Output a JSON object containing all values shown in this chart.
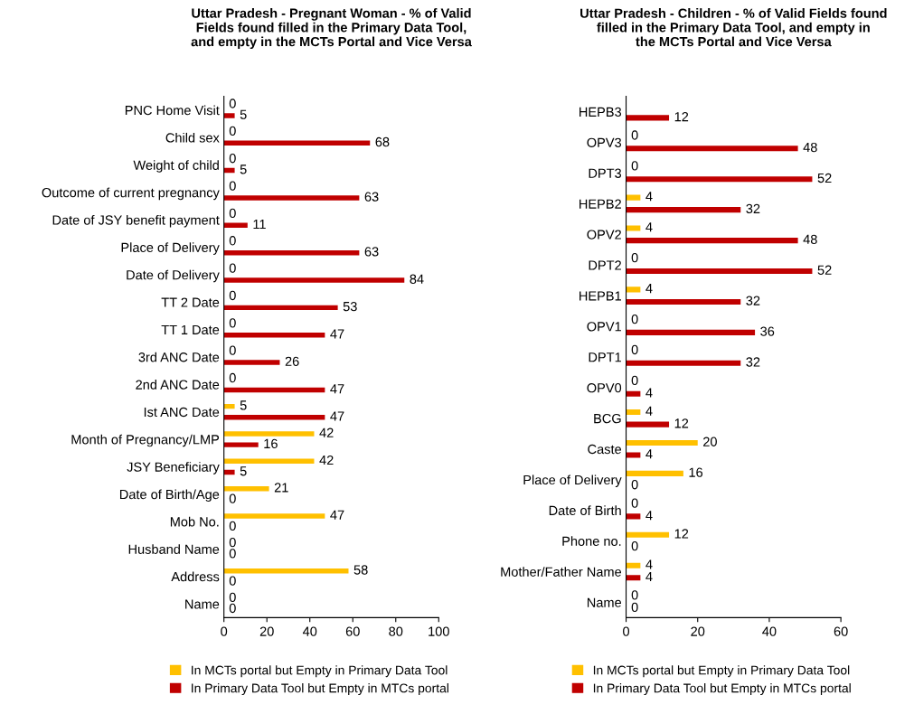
{
  "chart_data": [
    {
      "type": "bar",
      "orientation": "horizontal",
      "title": "Uttar Pradesh - Pregnant Woman - % of Valid\nFields found filled in the Primary Data Tool,\nand empty in the MCTs Portal and Vice Versa",
      "categories": [
        "PNC Home Visit",
        "Child sex",
        "Weight of child",
        "Outcome of current pregnancy",
        "Date of JSY benefit payment",
        "Place of Delivery",
        "Date of Delivery",
        "TT 2 Date",
        "TT 1 Date",
        "3rd ANC Date",
        "2nd ANC Date",
        "Ist ANC Date",
        "Month of Pregnancy/LMP",
        "JSY Beneficiary",
        "Date of Birth/Age",
        "Mob No.",
        "Husband Name",
        "Address",
        "Name"
      ],
      "series": [
        {
          "name": "In MCTs portal but Empty in Primary Data Tool",
          "color": "#ffc000",
          "values": [
            0,
            0,
            0,
            0,
            0,
            0,
            0,
            0,
            0,
            0,
            0,
            5,
            42,
            42,
            21,
            47,
            0,
            58,
            0
          ]
        },
        {
          "name": "In Primary Data Tool but Empty in MTCs portal",
          "color": "#c00000",
          "values": [
            5,
            68,
            5,
            63,
            11,
            63,
            84,
            53,
            47,
            26,
            47,
            47,
            16,
            5,
            0,
            0,
            0,
            0,
            0
          ]
        }
      ],
      "xlim": [
        0,
        100
      ],
      "xticks": [
        0,
        20,
        40,
        60,
        80,
        100
      ],
      "data_labels": true,
      "grid": false,
      "legend": "bottom"
    },
    {
      "type": "bar",
      "orientation": "horizontal",
      "title": "Uttar Pradesh - Children - % of Valid Fields found\nfilled in the Primary Data Tool, and empty in\nthe MCTs Portal and Vice Versa",
      "categories": [
        "HEPB3",
        "OPV3",
        "DPT3",
        "HEPB2",
        "OPV2",
        "DPT2",
        "HEPB1",
        "OPV1",
        "DPT1",
        "OPV0",
        "BCG",
        "Caste",
        "Place of Delivery",
        "Date of Birth",
        "Phone no.",
        "Mother/Father Name",
        "Name"
      ],
      "series": [
        {
          "name": "In MCTs portal but Empty in Primary Data Tool",
          "color": "#ffc000",
          "values": [
            null,
            0,
            0,
            4,
            4,
            0,
            4,
            0,
            0,
            0,
            4,
            20,
            16,
            0,
            12,
            4,
            0
          ]
        },
        {
          "name": "In Primary Data Tool but Empty in MTCs portal",
          "color": "#c00000",
          "values": [
            12,
            48,
            52,
            32,
            48,
            52,
            32,
            36,
            32,
            4,
            12,
            4,
            0,
            4,
            0,
            4,
            0
          ]
        }
      ],
      "xlim": [
        0,
        60
      ],
      "xticks": [
        0,
        20,
        40,
        60
      ],
      "data_labels": true,
      "grid": false,
      "legend": "bottom"
    }
  ]
}
